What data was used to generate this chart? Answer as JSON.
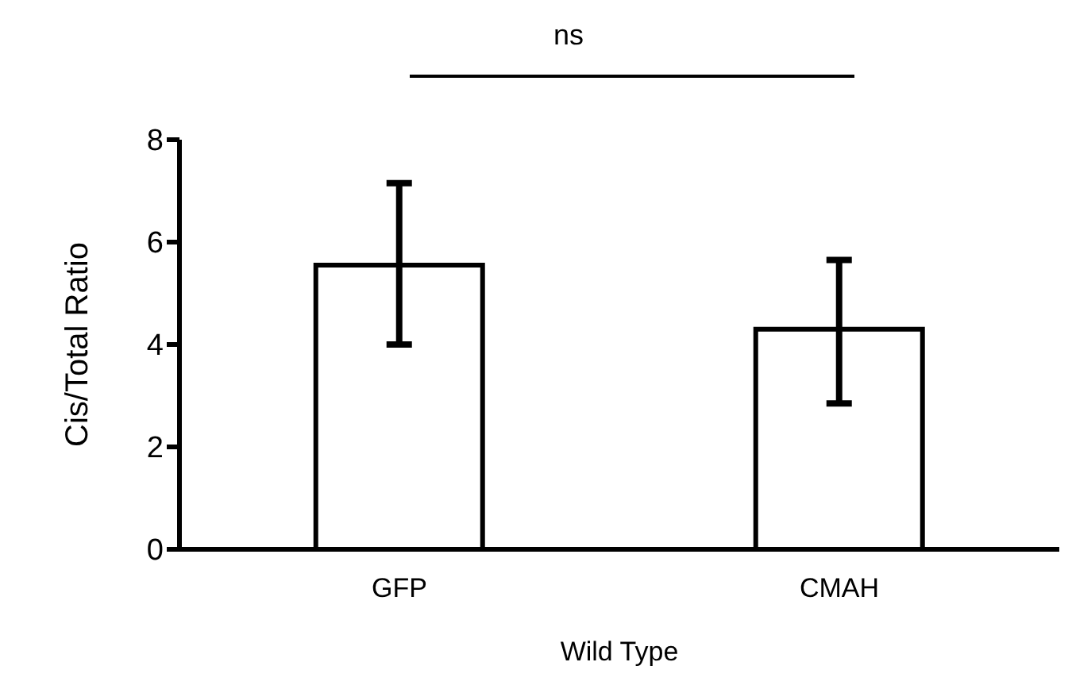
{
  "chart_data": {
    "type": "bar",
    "ylabel": "Cis/Total Ratio",
    "xlabel": "Wild Type",
    "categories": [
      "GFP",
      "CMAH"
    ],
    "values": [
      5.55,
      4.3
    ],
    "color": "#ffffff",
    "errors": [
      [
        4.0,
        7.15
      ],
      [
        2.85,
        5.65
      ]
    ],
    "ylim": [
      0,
      8
    ],
    "yticks": [
      0,
      2,
      4,
      6,
      8
    ],
    "annotations": [
      "ns"
    ]
  }
}
